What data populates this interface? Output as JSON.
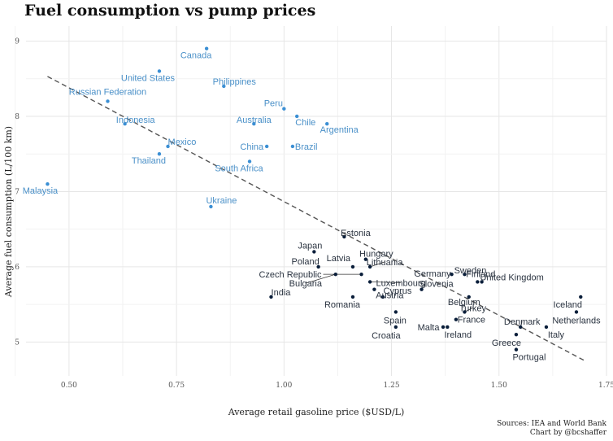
{
  "chart_data": {
    "type": "scatter",
    "title": "Fuel consumption vs pump prices",
    "xlabel": "Average retail gasoline price ($USD/L)",
    "ylabel": "Average fuel consumption (L/100 km)",
    "xlim": [
      0.4,
      1.75
    ],
    "ylim": [
      4.55,
      9.2
    ],
    "xticks": [
      0.5,
      0.75,
      1.0,
      1.25,
      1.5,
      1.75
    ],
    "xtick_labels": [
      "0.50",
      "0.75",
      "1.00",
      "1.25",
      "1.50",
      "1.75"
    ],
    "yticks": [
      5,
      6,
      7,
      8,
      9
    ],
    "ytick_labels": [
      "5",
      "6",
      "7",
      "8",
      "9"
    ],
    "grid": true,
    "trendline": {
      "style": "dashed",
      "x": [
        0.45,
        1.7
      ],
      "y": [
        8.53,
        4.75
      ]
    },
    "colors": {
      "non_oecd": "#3b8fd4",
      "non_oecd_label": "#4a90c8",
      "oecd": "#0a1e3a",
      "oecd_label": "#2a3340",
      "trend": "#555555"
    },
    "points": [
      {
        "label": "Canada",
        "x": 0.82,
        "y": 8.9,
        "group": "non_oecd"
      },
      {
        "label": "United States",
        "x": 0.71,
        "y": 8.6,
        "group": "non_oecd"
      },
      {
        "label": "Philippines",
        "x": 0.86,
        "y": 8.4,
        "group": "non_oecd"
      },
      {
        "label": "Russian Federation",
        "x": 0.59,
        "y": 8.2,
        "group": "non_oecd"
      },
      {
        "label": "Peru",
        "x": 1.0,
        "y": 8.1,
        "group": "non_oecd"
      },
      {
        "label": "Australia",
        "x": 0.93,
        "y": 7.9,
        "group": "non_oecd"
      },
      {
        "label": "Chile",
        "x": 1.03,
        "y": 8.0,
        "group": "non_oecd"
      },
      {
        "label": "Argentina",
        "x": 1.1,
        "y": 7.9,
        "group": "non_oecd"
      },
      {
        "label": "Indonesia",
        "x": 0.63,
        "y": 7.9,
        "group": "non_oecd"
      },
      {
        "label": "Mexico",
        "x": 0.73,
        "y": 7.6,
        "group": "non_oecd"
      },
      {
        "label": "China",
        "x": 0.96,
        "y": 7.6,
        "group": "non_oecd"
      },
      {
        "label": "Brazil",
        "x": 1.02,
        "y": 7.6,
        "group": "non_oecd"
      },
      {
        "label": "Thailand",
        "x": 0.71,
        "y": 7.5,
        "group": "non_oecd"
      },
      {
        "label": "South Africa",
        "x": 0.92,
        "y": 7.4,
        "group": "non_oecd"
      },
      {
        "label": "Malaysia",
        "x": 0.45,
        "y": 7.1,
        "group": "non_oecd"
      },
      {
        "label": "Ukraine",
        "x": 0.83,
        "y": 6.8,
        "group": "non_oecd"
      },
      {
        "label": "Estonia",
        "x": 1.14,
        "y": 6.4,
        "group": "oecd"
      },
      {
        "label": "Japan",
        "x": 1.07,
        "y": 6.2,
        "group": "oecd"
      },
      {
        "label": "Hungary",
        "x": 1.19,
        "y": 6.1,
        "group": "oecd"
      },
      {
        "label": "Latvia",
        "x": 1.16,
        "y": 6.0,
        "group": "oecd"
      },
      {
        "label": "Lithuania",
        "x": 1.2,
        "y": 6.0,
        "group": "oecd"
      },
      {
        "label": "Poland",
        "x": 1.08,
        "y": 6.0,
        "group": "oecd"
      },
      {
        "label": "Germany",
        "x": 1.39,
        "y": 5.9,
        "group": "oecd"
      },
      {
        "label": "Sweden",
        "x": 1.42,
        "y": 5.9,
        "group": "oecd"
      },
      {
        "label": "Czech Republic",
        "x": 1.18,
        "y": 5.9,
        "group": "oecd"
      },
      {
        "label": "United Kingdom",
        "x": 1.46,
        "y": 5.8,
        "group": "oecd"
      },
      {
        "label": "Luxembourg",
        "x": 1.2,
        "y": 5.8,
        "group": "oecd"
      },
      {
        "label": "Slovenia",
        "x": 1.32,
        "y": 5.7,
        "group": "oecd"
      },
      {
        "label": "Bulgaria",
        "x": 1.12,
        "y": 5.9,
        "group": "oecd"
      },
      {
        "label": "Austria",
        "x": 1.21,
        "y": 5.7,
        "group": "oecd"
      },
      {
        "label": "Finland",
        "x": 1.45,
        "y": 5.8,
        "group": "oecd"
      },
      {
        "label": "India",
        "x": 0.97,
        "y": 5.6,
        "group": "oecd"
      },
      {
        "label": "Romania",
        "x": 1.16,
        "y": 5.6,
        "group": "oecd"
      },
      {
        "label": "Belgium",
        "x": 1.43,
        "y": 5.6,
        "group": "oecd"
      },
      {
        "label": "Iceland",
        "x": 1.69,
        "y": 5.6,
        "group": "oecd"
      },
      {
        "label": "Cyprus",
        "x": 1.23,
        "y": 5.6,
        "group": "oecd"
      },
      {
        "label": "Turkey",
        "x": 1.42,
        "y": 5.4,
        "group": "oecd"
      },
      {
        "label": "Netherlands",
        "x": 1.68,
        "y": 5.4,
        "group": "oecd"
      },
      {
        "label": "Spain",
        "x": 1.26,
        "y": 5.4,
        "group": "oecd"
      },
      {
        "label": "France",
        "x": 1.4,
        "y": 5.3,
        "group": "oecd"
      },
      {
        "label": "Denmark",
        "x": 1.55,
        "y": 5.2,
        "group": "oecd"
      },
      {
        "label": "Malta",
        "x": 1.37,
        "y": 5.2,
        "group": "oecd"
      },
      {
        "label": "Croatia",
        "x": 1.26,
        "y": 5.2,
        "group": "oecd"
      },
      {
        "label": "Ireland",
        "x": 1.38,
        "y": 5.2,
        "group": "oecd"
      },
      {
        "label": "Italy",
        "x": 1.61,
        "y": 5.2,
        "group": "oecd"
      },
      {
        "label": "Greece",
        "x": 1.54,
        "y": 5.1,
        "group": "oecd"
      },
      {
        "label": "Portugal",
        "x": 1.54,
        "y": 4.9,
        "group": "oecd"
      }
    ]
  },
  "caption": {
    "line1": "Sources: IEA and World Bank",
    "line2": "Chart by @bcshaffer"
  }
}
